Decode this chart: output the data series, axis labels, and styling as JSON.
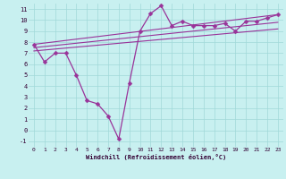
{
  "xlabel": "Windchill (Refroidissement éolien,°C)",
  "bg_color": "#c8f0f0",
  "grid_color": "#a0d8d8",
  "line_color": "#993399",
  "xlim": [
    -0.5,
    23.5
  ],
  "ylim": [
    -1.5,
    11.5
  ],
  "xticks": [
    0,
    1,
    2,
    3,
    4,
    5,
    6,
    7,
    8,
    9,
    10,
    11,
    12,
    13,
    14,
    15,
    16,
    17,
    18,
    19,
    20,
    21,
    22,
    23
  ],
  "yticks": [
    -1,
    0,
    1,
    2,
    3,
    4,
    5,
    6,
    7,
    8,
    9,
    10,
    11
  ],
  "data_series": {
    "x": [
      0,
      1,
      2,
      3,
      4,
      5,
      6,
      7,
      8,
      9,
      10,
      11,
      12,
      13,
      14,
      15,
      16,
      17,
      18,
      19,
      20,
      21,
      22,
      23
    ],
    "y": [
      7.8,
      6.2,
      7.0,
      7.0,
      5.0,
      2.7,
      2.4,
      1.3,
      -0.8,
      4.3,
      9.0,
      10.6,
      11.3,
      9.5,
      9.9,
      9.5,
      9.5,
      9.5,
      9.7,
      9.0,
      9.9,
      9.9,
      10.2,
      10.5
    ]
  },
  "trend_lines": [
    {
      "x0": 0,
      "y0": 7.8,
      "x1": 23,
      "y1": 10.5
    },
    {
      "x0": 0,
      "y0": 7.5,
      "x1": 23,
      "y1": 9.8
    },
    {
      "x0": 0,
      "y0": 7.2,
      "x1": 23,
      "y1": 9.2
    }
  ]
}
